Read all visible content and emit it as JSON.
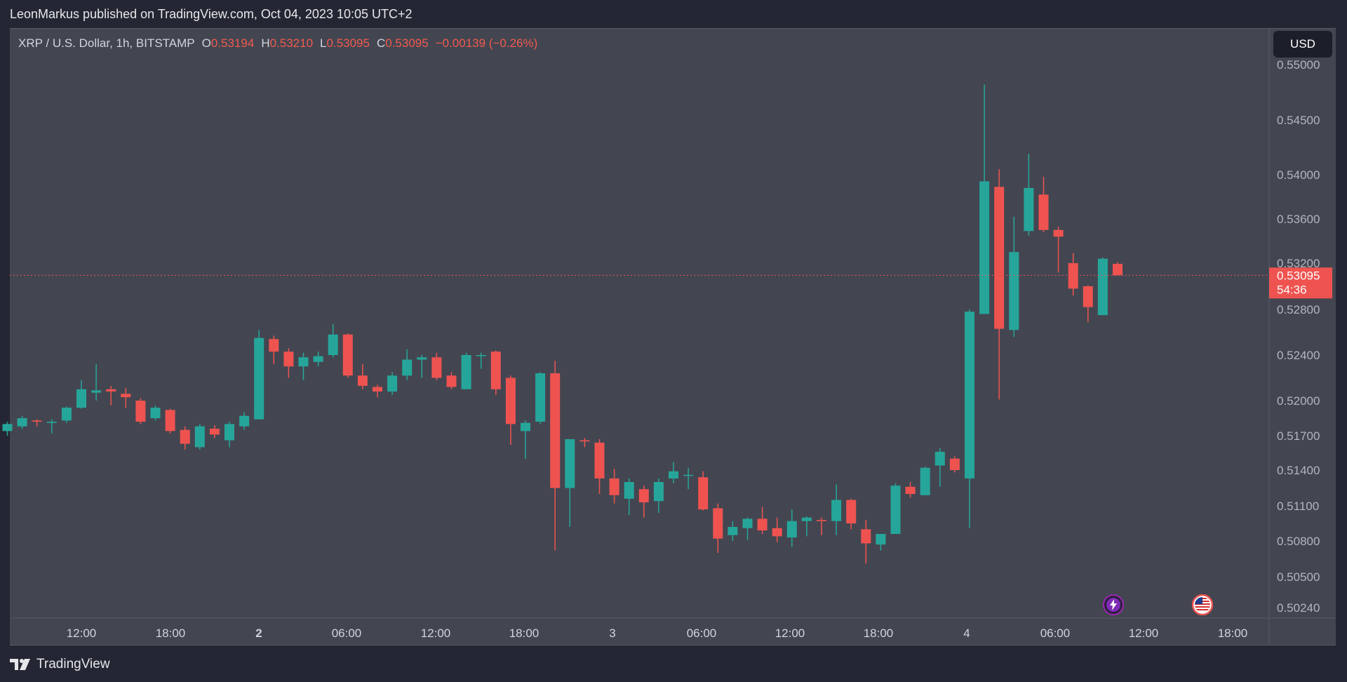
{
  "header": {
    "published_text": "LeonMarkus published on TradingView.com, Oct 04, 2023 10:05 UTC+2"
  },
  "legend": {
    "symbol": "XRP / U.S. Dollar, 1h, BITSTAMP",
    "open_label": "O",
    "open_value": "0.53194",
    "high_label": "H",
    "high_value": "0.53210",
    "low_label": "L",
    "low_value": "0.53095",
    "close_label": "C",
    "close_value": "0.53095",
    "change": "−0.00139 (−0.26%)"
  },
  "currency_button": {
    "label": "USD"
  },
  "price_tag": {
    "price": "0.53095",
    "countdown": "54:36"
  },
  "footer": {
    "brand": "TradingView"
  },
  "colors": {
    "up": "#26a69a",
    "down": "#ef5350",
    "background": "#434651",
    "page": "#242733",
    "text": "#d1d4dc"
  },
  "events": [
    {
      "name": "lightning-event-icon",
      "icon": "lightning-icon"
    },
    {
      "name": "us-flag-event-icon",
      "icon": "us-flag-icon"
    }
  ],
  "chart_data": {
    "type": "candlestick",
    "symbol": "XRP / U.S. Dollar",
    "interval": "1h",
    "exchange": "BITSTAMP",
    "y_ticks": [
      "0.55000",
      "0.54500",
      "0.54000",
      "0.53600",
      "0.53200",
      "0.52800",
      "0.52400",
      "0.52000",
      "0.51700",
      "0.51400",
      "0.51100",
      "0.50800",
      "0.50500",
      "0.50240"
    ],
    "x_ticks": [
      {
        "label": "12:00",
        "bold": false,
        "time": "Oct 01 12:00"
      },
      {
        "label": "18:00",
        "bold": false,
        "time": "Oct 01 18:00"
      },
      {
        "label": "2",
        "bold": true,
        "time": "Oct 02 00:00"
      },
      {
        "label": "06:00",
        "bold": false,
        "time": "Oct 02 06:00"
      },
      {
        "label": "12:00",
        "bold": false,
        "time": "Oct 02 12:00"
      },
      {
        "label": "18:00",
        "bold": false,
        "time": "Oct 02 18:00"
      },
      {
        "label": "3",
        "bold": false,
        "time": "Oct 03 00:00"
      },
      {
        "label": "06:00",
        "bold": false,
        "time": "Oct 03 06:00"
      },
      {
        "label": "12:00",
        "bold": false,
        "time": "Oct 03 12:00"
      },
      {
        "label": "18:00",
        "bold": false,
        "time": "Oct 03 18:00"
      },
      {
        "label": "4",
        "bold": false,
        "time": "Oct 04 00:00"
      },
      {
        "label": "06:00",
        "bold": false,
        "time": "Oct 04 06:00"
      },
      {
        "label": "12:00",
        "bold": false,
        "time": "Oct 04 12:00"
      },
      {
        "label": "18:00",
        "bold": false,
        "time": "Oct 04 18:00"
      }
    ],
    "first_candle": "Oct 01 07:00",
    "candle_interval_hours": 1,
    "current_price": 0.53095,
    "candles": [
      [
        0.5174,
        0.518,
        0.517,
        0.5182
      ],
      [
        0.5178,
        0.5185,
        0.5176,
        0.5187
      ],
      [
        0.5183,
        0.5182,
        0.5178,
        0.5184
      ],
      [
        0.5181,
        0.5182,
        0.5172,
        0.5184
      ],
      [
        0.5183,
        0.5194,
        0.5181,
        0.5195
      ],
      [
        0.5194,
        0.521,
        0.5193,
        0.5218
      ],
      [
        0.5207,
        0.5209,
        0.52,
        0.5232
      ],
      [
        0.521,
        0.5208,
        0.5196,
        0.5213
      ],
      [
        0.5206,
        0.5203,
        0.5194,
        0.5211
      ],
      [
        0.52,
        0.5182,
        0.518,
        0.5202
      ],
      [
        0.5185,
        0.5194,
        0.5183,
        0.5196
      ],
      [
        0.5192,
        0.5174,
        0.5172,
        0.5193
      ],
      [
        0.5175,
        0.5163,
        0.5158,
        0.5178
      ],
      [
        0.516,
        0.5178,
        0.5158,
        0.518
      ],
      [
        0.5176,
        0.5171,
        0.5168,
        0.5179
      ],
      [
        0.5166,
        0.518,
        0.516,
        0.5182
      ],
      [
        0.5178,
        0.5187,
        0.5175,
        0.519
      ],
      [
        0.5184,
        0.5255,
        0.5184,
        0.5262
      ],
      [
        0.5254,
        0.5243,
        0.5232,
        0.5257
      ],
      [
        0.5243,
        0.523,
        0.522,
        0.5246
      ],
      [
        0.523,
        0.5238,
        0.5218,
        0.5242
      ],
      [
        0.5234,
        0.5239,
        0.523,
        0.5243
      ],
      [
        0.524,
        0.5258,
        0.5238,
        0.5267
      ],
      [
        0.5258,
        0.5222,
        0.522,
        0.5259
      ],
      [
        0.5222,
        0.5213,
        0.521,
        0.5232
      ],
      [
        0.5212,
        0.5208,
        0.5203,
        0.5214
      ],
      [
        0.5208,
        0.5222,
        0.5205,
        0.5225
      ],
      [
        0.5222,
        0.5236,
        0.5218,
        0.5245
      ],
      [
        0.5236,
        0.5238,
        0.522,
        0.524
      ],
      [
        0.5238,
        0.522,
        0.5218,
        0.5242
      ],
      [
        0.5222,
        0.5212,
        0.521,
        0.5225
      ],
      [
        0.521,
        0.524,
        0.521,
        0.5242
      ],
      [
        0.524,
        0.524,
        0.5228,
        0.5242
      ],
      [
        0.5243,
        0.521,
        0.5205,
        0.5244
      ],
      [
        0.522,
        0.518,
        0.5162,
        0.5222
      ],
      [
        0.5174,
        0.5181,
        0.515,
        0.5183
      ],
      [
        0.5182,
        0.5224,
        0.518,
        0.5225
      ],
      [
        0.5224,
        0.5125,
        0.5072,
        0.5235
      ],
      [
        0.5125,
        0.5167,
        0.5092,
        0.5167
      ],
      [
        0.5166,
        0.5165,
        0.516,
        0.5168
      ],
      [
        0.5164,
        0.5133,
        0.512,
        0.5167
      ],
      [
        0.5133,
        0.5119,
        0.5112,
        0.5141
      ],
      [
        0.5116,
        0.513,
        0.5102,
        0.5133
      ],
      [
        0.5124,
        0.5113,
        0.51,
        0.5127
      ],
      [
        0.5114,
        0.513,
        0.5104,
        0.5133
      ],
      [
        0.5133,
        0.5139,
        0.5129,
        0.5147
      ],
      [
        0.5136,
        0.5136,
        0.5124,
        0.5142
      ],
      [
        0.5134,
        0.5107,
        0.5106,
        0.5139
      ],
      [
        0.5108,
        0.5082,
        0.507,
        0.5112
      ],
      [
        0.5085,
        0.5092,
        0.508,
        0.5097
      ],
      [
        0.5091,
        0.5099,
        0.5081,
        0.51
      ],
      [
        0.5099,
        0.5089,
        0.5086,
        0.5109
      ],
      [
        0.5091,
        0.5084,
        0.5079,
        0.51
      ],
      [
        0.5083,
        0.5097,
        0.5075,
        0.5107
      ],
      [
        0.5097,
        0.51,
        0.5084,
        0.5101
      ],
      [
        0.5098,
        0.5097,
        0.5085,
        0.51
      ],
      [
        0.5097,
        0.5115,
        0.5085,
        0.5128
      ],
      [
        0.5115,
        0.5095,
        0.509,
        0.5116
      ],
      [
        0.509,
        0.5078,
        0.5061,
        0.5098
      ],
      [
        0.5077,
        0.5086,
        0.5072,
        0.5086
      ],
      [
        0.5086,
        0.5127,
        0.5086,
        0.5129
      ],
      [
        0.5126,
        0.512,
        0.5117,
        0.513
      ],
      [
        0.5119,
        0.5142,
        0.5119,
        0.5143
      ],
      [
        0.5144,
        0.5156,
        0.5126,
        0.5159
      ],
      [
        0.515,
        0.514,
        0.5138,
        0.5152
      ],
      [
        0.5133,
        0.5278,
        0.5091,
        0.528
      ],
      [
        0.5276,
        0.5394,
        0.5276,
        0.5482
      ],
      [
        0.5389,
        0.5263,
        0.5201,
        0.5405
      ],
      [
        0.5262,
        0.533,
        0.5256,
        0.5362
      ],
      [
        0.5349,
        0.5388,
        0.5345,
        0.5419
      ],
      [
        0.5382,
        0.535,
        0.5348,
        0.5398
      ],
      [
        0.535,
        0.5344,
        0.5312,
        0.5353
      ],
      [
        0.532,
        0.5298,
        0.5292,
        0.5329
      ],
      [
        0.53,
        0.5282,
        0.5269,
        0.5301
      ],
      [
        0.5275,
        0.5324,
        0.5275,
        0.5325
      ],
      [
        0.53194,
        0.53095,
        0.53095,
        0.5321
      ]
    ]
  }
}
